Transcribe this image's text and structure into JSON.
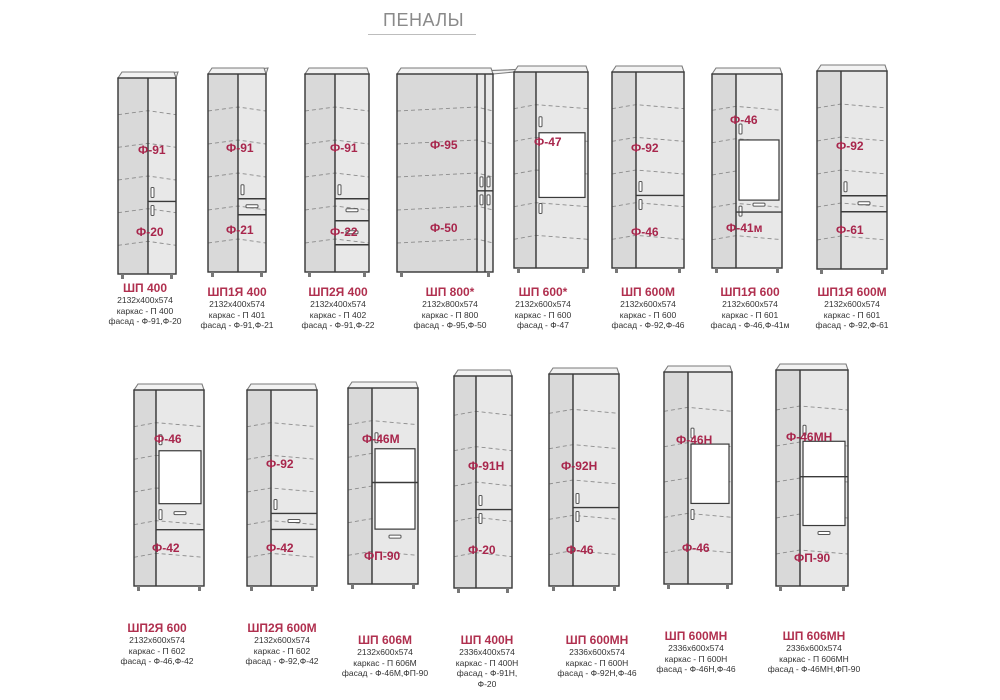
{
  "title": "ПЕНАЛЫ",
  "cabinets": [
    {
      "name": "ШП 400",
      "dims": "2132х400х574",
      "frame": "каркас - П 400",
      "facade": "фасад - Ф-91,Ф-20",
      "labels": [
        "Ф-91",
        "Ф-20"
      ]
    },
    {
      "name": "ШП1Я 400",
      "dims": "2132х400х574",
      "frame": "каркас - П 401",
      "facade": "фасад - Ф-91,Ф-21",
      "labels": [
        "Ф-91",
        "Ф-21"
      ]
    },
    {
      "name": "ШП2Я 400",
      "dims": "2132х400х574",
      "frame": "каркас - П 402",
      "facade": "фасад - Ф-91,Ф-22",
      "labels": [
        "Ф-91",
        "Ф-22"
      ]
    },
    {
      "name": "ШП 800*",
      "dims": "2132х800х574",
      "frame": "каркас - П 800",
      "facade": "фасад - Ф-95,Ф-50",
      "labels": [
        "Ф-95",
        "Ф-50"
      ]
    },
    {
      "name": "ШП 600*",
      "dims": "2132х600х574",
      "frame": "каркас - П 600",
      "facade": "фасад - Ф-47",
      "labels": [
        "Ф-47"
      ]
    },
    {
      "name": "ШП 600М",
      "dims": "2132х600х574",
      "frame": "каркас - П 600",
      "facade": "фасад - Ф-92,Ф-46",
      "labels": [
        "Ф-92",
        "Ф-46"
      ]
    },
    {
      "name": "ШП1Я 600",
      "dims": "2132х600х574",
      "frame": "каркас - П 601",
      "facade": "фасад - Ф-46,Ф-41м",
      "labels": [
        "Ф-46",
        "Ф-41м"
      ]
    },
    {
      "name": "ШП1Я 600М",
      "dims": "2132х600х574",
      "frame": "каркас - П 601",
      "facade": "фасад - Ф-92,Ф-61",
      "labels": [
        "Ф-92",
        "Ф-61"
      ]
    },
    {
      "name": "ШП2Я 600",
      "dims": "2132х600х574",
      "frame": "каркас - П 602",
      "facade": "фасад - Ф-46,Ф-42",
      "labels": [
        "Ф-46",
        "Ф-42"
      ]
    },
    {
      "name": "ШП2Я 600М",
      "dims": "2132х600х574",
      "frame": "каркас - П 602",
      "facade": "фасад - Ф-92,Ф-42",
      "labels": [
        "Ф-92",
        "Ф-42"
      ]
    },
    {
      "name": "ШП 606М",
      "dims": "2132х600х574",
      "frame": "каркас - П 606М",
      "facade": "фасад - Ф-46М,ФП-90",
      "labels": [
        "Ф-46М",
        "ФП-90"
      ]
    },
    {
      "name": "ШП 400Н",
      "dims": "2336х400х574",
      "frame": "каркас - П 400Н",
      "facade": "фасад - Ф-91Н,",
      "facade2": "Ф-20",
      "labels": [
        "Ф-91Н",
        "Ф-20"
      ]
    },
    {
      "name": "ШП 600МН",
      "dims": "2336х600х574",
      "frame": "каркас - П 600Н",
      "facade": "фасад - Ф-92Н,Ф-46",
      "labels": [
        "Ф-92Н",
        "Ф-46"
      ]
    },
    {
      "name": "ШП 600МН",
      "dims": "2336х600х574",
      "frame": "каркас - П 600Н",
      "facade": "фасад - Ф-46Н,Ф-46",
      "labels": [
        "Ф-46Н",
        "Ф-46"
      ]
    },
    {
      "name": "ШП 606МН",
      "dims": "2336х600х574",
      "frame": "каркас - П 606МН",
      "facade": "фасад - Ф-46МН,ФП-90",
      "labels": [
        "Ф-46МН",
        "ФП-90"
      ]
    }
  ]
}
